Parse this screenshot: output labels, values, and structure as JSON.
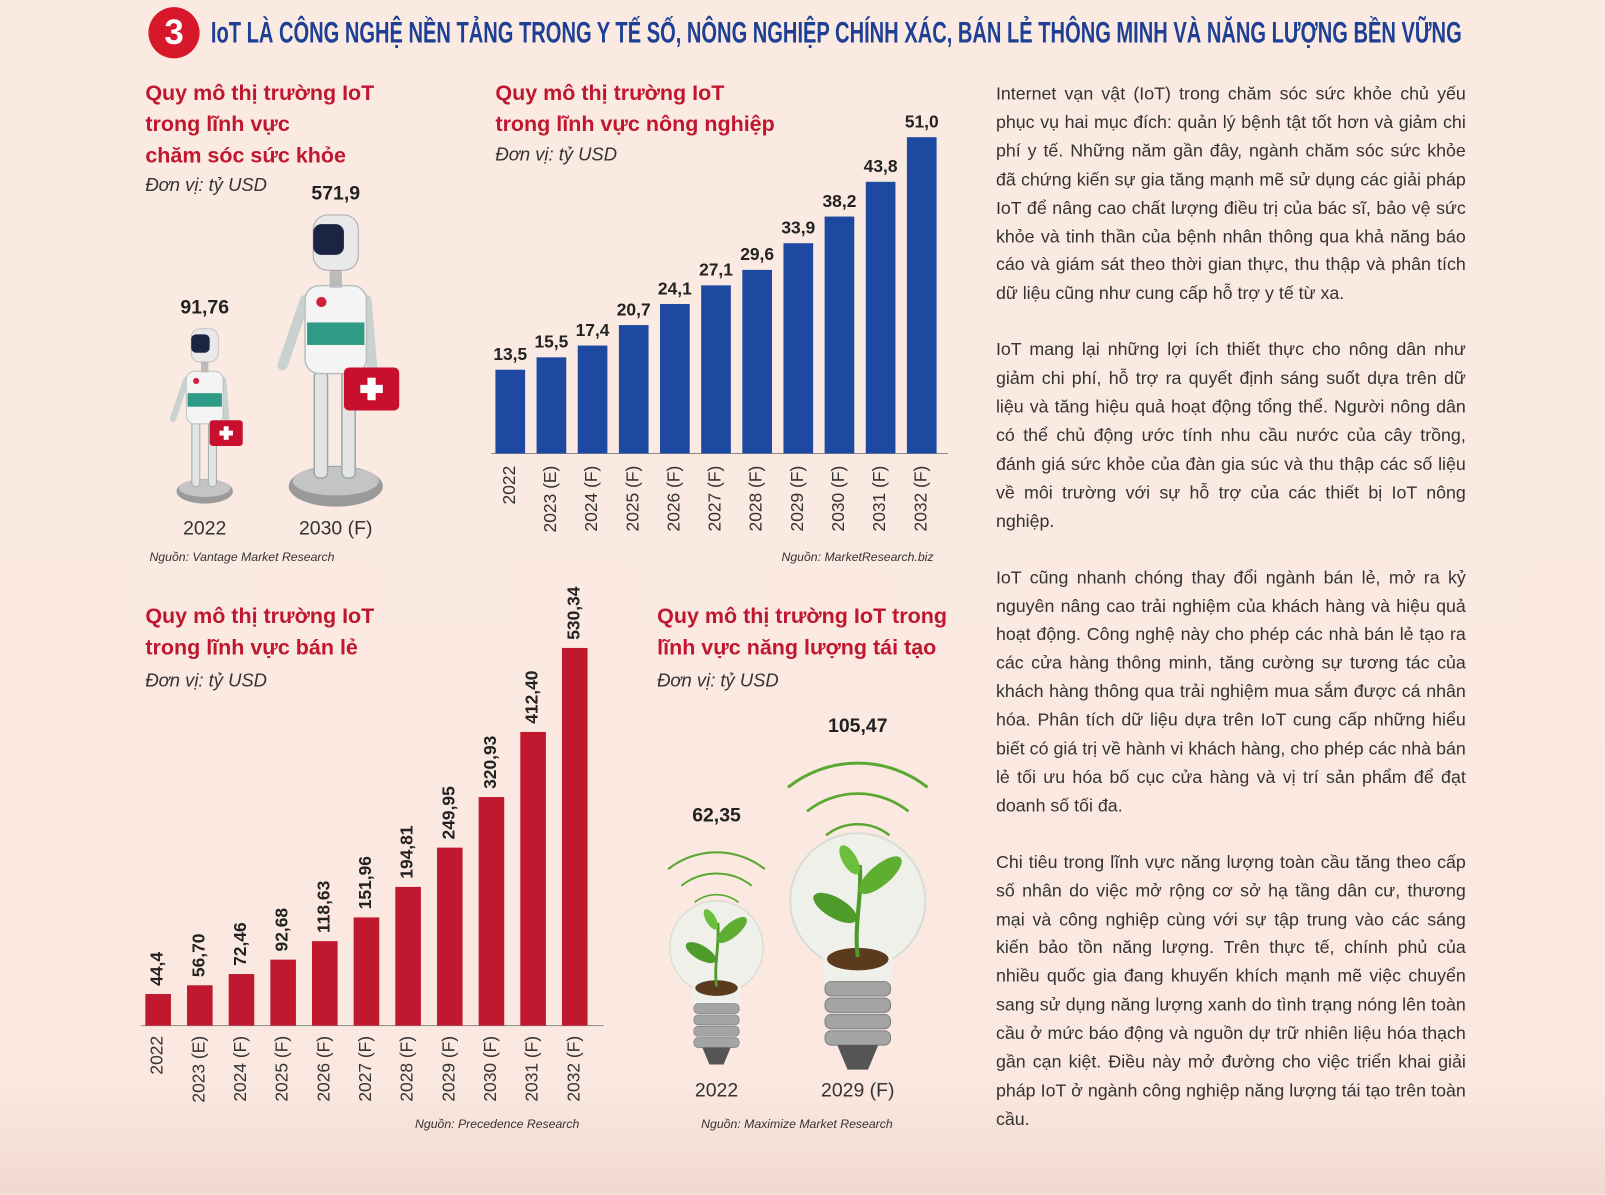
{
  "header": {
    "number": "3",
    "title": "IoT LÀ CÔNG NGHỆ NỀN TẢNG TRONG Y TẾ SỐ, NÔNG NGHIỆP CHÍNH XÁC, BÁN LẺ THÔNG MINH VÀ NĂNG LƯỢNG BỀN VỮNG"
  },
  "chart_data": [
    {
      "type": "pictogram",
      "icon": "robot",
      "title": [
        "Quy mô thị trường IoT",
        "trong lĩnh vực",
        "chăm sóc sức khỏe"
      ],
      "unit": "Đơn vị: tỷ USD",
      "categories": [
        "2022",
        "2030 (F)"
      ],
      "values": [
        91.76,
        571.9
      ],
      "value_labels": [
        "91,76",
        "571,9"
      ],
      "source": "Nguồn: Vantage Market Research"
    },
    {
      "type": "bar",
      "title": [
        "Quy mô thị trường IoT",
        "trong lĩnh vực nông nghiệp"
      ],
      "unit": "Đơn vị: tỷ USD",
      "categories": [
        "2022",
        "2023 (E)",
        "2024 (F)",
        "2025 (F)",
        "2026 (F)",
        "2027 (F)",
        "2028 (F)",
        "2029 (F)",
        "2030 (F)",
        "2031 (F)",
        "2032 (F)"
      ],
      "values": [
        13.5,
        15.5,
        17.4,
        20.7,
        24.1,
        27.1,
        29.6,
        33.9,
        38.2,
        43.8,
        51.0
      ],
      "value_labels": [
        "13,5",
        "15,5",
        "17,4",
        "20,7",
        "24,1",
        "27,1",
        "29,6",
        "33,9",
        "38,2",
        "43,8",
        "51,0"
      ],
      "value_label_orientation": "horizontal",
      "color": "#1d4aa0",
      "source": "Nguồn: MarketResearch.biz"
    },
    {
      "type": "bar",
      "title": [
        "Quy mô thị trường IoT",
        "trong lĩnh vực bán lẻ"
      ],
      "unit": "Đơn vị: tỷ USD",
      "categories": [
        "2022",
        "2023 (E)",
        "2024 (F)",
        "2025 (F)",
        "2026 (F)",
        "2027 (F)",
        "2028 (F)",
        "2029 (F)",
        "2030 (F)",
        "2031 (F)",
        "2032 (F)"
      ],
      "values": [
        44.4,
        56.7,
        72.46,
        92.68,
        118.63,
        151.96,
        194.81,
        249.95,
        320.93,
        412.4,
        530.34
      ],
      "value_labels": [
        "44,4",
        "56,70",
        "72,46",
        "92,68",
        "118,63",
        "151,96",
        "194,81",
        "249,95",
        "320,93",
        "412,40",
        "530,34"
      ],
      "value_label_orientation": "vertical",
      "color": "#c0182e",
      "source": "Nguồn: Precedence Research"
    },
    {
      "type": "pictogram",
      "icon": "bulb",
      "title": [
        "Quy mô thị trường IoT trong",
        "lĩnh vực năng lượng tái tạo"
      ],
      "unit": "Đơn vị: tỷ USD",
      "categories": [
        "2022",
        "2029 (F)"
      ],
      "values": [
        62.35,
        105.47
      ],
      "value_labels": [
        "62,35",
        "105,47"
      ],
      "source": "Nguồn: Maximize Market Research"
    }
  ],
  "article": {
    "paragraphs": [
      "Internet vạn vật (IoT) trong chăm sóc sức khỏe chủ yếu phục vụ hai mục đích: quản lý bệnh tật tốt hơn và giảm chi phí y tế. Những năm gần đây, ngành chăm sóc sức khỏe đã chứng kiến sự gia tăng mạnh mẽ sử dụng các giải pháp IoT để nâng cao chất lượng điều trị của bác sĩ, bảo vệ sức khỏe và tinh thần của bệnh nhân thông qua khả năng báo cáo và giám sát theo thời gian thực, thu thập và phân tích dữ liệu cũng như cung cấp hỗ trợ y tế từ xa.",
      "IoT mang lại những lợi ích thiết thực cho nông dân như giảm chi phí, hỗ trợ ra quyết định sáng suốt dựa trên dữ liệu và tăng hiệu quả hoạt động tổng thể. Người nông dân có thể chủ động ước tính nhu cầu nước của cây trồng, đánh giá sức khỏe của đàn gia súc và thu thập các số liệu về môi trường với sự hỗ trợ của các thiết bị IoT nông nghiệp.",
      "IoT cũng nhanh chóng thay đổi ngành bán lẻ, mở ra kỷ nguyên nâng cao trải nghiệm của khách hàng và hiệu quả hoạt động. Công nghệ này cho phép các nhà bán lẻ tạo ra các cửa hàng thông minh, tăng cường sự tương tác của khách hàng thông qua trải nghiệm mua sắm được cá nhân hóa. Phân tích dữ liệu dựa trên IoT cung cấp những hiểu biết có giá trị về hành vi khách hàng, cho phép các nhà bán lẻ tối ưu hóa bố cục cửa hàng và vị trí sản phẩm để đạt doanh số tối đa.",
      "Chi tiêu trong lĩnh vực năng lượng toàn cầu tăng theo cấp số nhân do việc mở rộng cơ sở hạ tầng dân cư, thương mại và công nghiệp cùng với sự tập trung vào các sáng kiến bảo tồn năng lượng. Trên thực tế, chính phủ của nhiều quốc gia đang khuyến khích mạnh mẽ việc chuyển sang sử dụng năng lượng xanh do tình trạng nóng lên toàn cầu ở mức báo động và nguồn dự trữ nhiên liệu hóa thạch gần cạn kiệt. Điều này mở đường cho việc triển khai giải pháp IoT ở ngành công nghiệp năng lượng tái tạo trên toàn cầu."
    ]
  }
}
